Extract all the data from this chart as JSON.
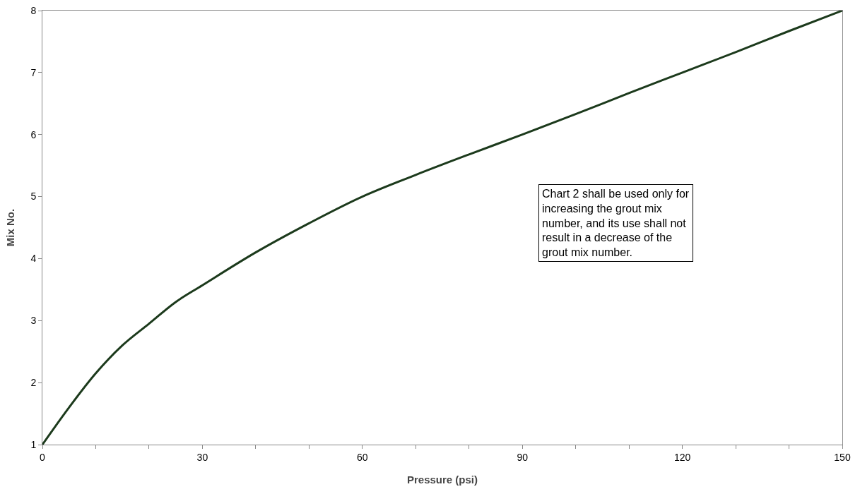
{
  "chart_data": {
    "type": "line",
    "xlabel": "Pressure (psi)",
    "ylabel": "Mix No.",
    "x": [
      0,
      5,
      10,
      15,
      20,
      25,
      30,
      40,
      50,
      60,
      70,
      80,
      90,
      100,
      110,
      120,
      130,
      140,
      150
    ],
    "series": [
      {
        "color": "#1c3a1c",
        "values": [
          1,
          1.6,
          2.15,
          2.6,
          2.95,
          3.3,
          3.57,
          4.1,
          4.57,
          5.0,
          5.35,
          5.68,
          6.0,
          6.33,
          6.67,
          7.0,
          7.33,
          7.67,
          8.0
        ]
      }
    ],
    "xlim": [
      0,
      150
    ],
    "xticks": [
      0,
      {
        "value": 10,
        "label": null
      },
      {
        "value": 20,
        "label": null
      },
      30,
      {
        "value": 40,
        "label": null
      },
      {
        "value": 50,
        "label": null
      },
      60,
      {
        "value": 70,
        "label": null
      },
      {
        "value": 80,
        "label": null
      },
      90,
      {
        "value": 100,
        "label": null
      },
      {
        "value": 110,
        "label": null
      },
      120,
      {
        "value": 130,
        "label": null
      },
      {
        "value": 140,
        "label": null
      },
      150
    ],
    "ylim": [
      1,
      8
    ],
    "yticks": [
      1,
      2,
      3,
      4,
      5,
      6,
      7,
      8
    ],
    "grid": false,
    "marker": "none",
    "line_style": "solid",
    "annotations": [
      "Chart 2 shall be used only for increasing the grout mix number, and its use shall not result in a decrease of the grout mix number."
    ]
  }
}
